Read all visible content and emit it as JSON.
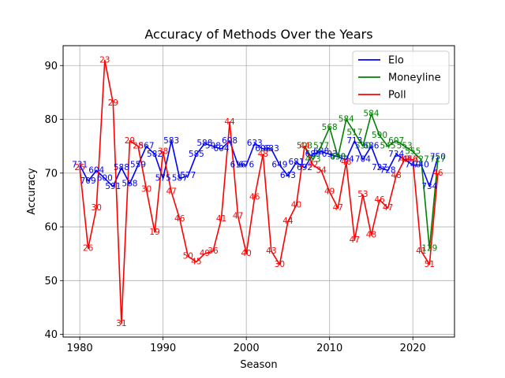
{
  "chart_data": {
    "type": "line",
    "title": "Accuracy of Methods Over the Years",
    "xlabel": "Season",
    "ylabel": "Accuracy",
    "xlim": [
      1978,
      2025
    ],
    "ylim": [
      39.5,
      93.7
    ],
    "xticks": [
      1980,
      1990,
      2000,
      2010,
      2020
    ],
    "yticks": [
      40,
      50,
      60,
      70,
      80,
      90
    ],
    "grid": true,
    "legend_position": "top-right",
    "series": [
      {
        "name": "Elo",
        "color": "#0000ff",
        "x": [
          1980,
          1981,
          1982,
          1983,
          1984,
          1985,
          1986,
          1987,
          1988,
          1989,
          1990,
          1991,
          1992,
          1993,
          1994,
          1995,
          1996,
          1997,
          1998,
          1999,
          2000,
          2001,
          2002,
          2003,
          2004,
          2005,
          2006,
          2007,
          2008,
          2009,
          2010,
          2011,
          2012,
          2013,
          2014,
          2015,
          2016,
          2017,
          2018,
          2019,
          2020,
          2021,
          2022,
          2023
        ],
        "y": [
          71.5,
          68.5,
          70.5,
          69.0,
          67.5,
          71.0,
          68.0,
          71.5,
          75.0,
          73.5,
          69.0,
          76.0,
          69.0,
          69.5,
          73.5,
          75.5,
          75.0,
          74.5,
          76.0,
          71.5,
          71.5,
          75.5,
          74.5,
          74.5,
          71.5,
          69.5,
          72.0,
          71.0,
          73.5,
          74.0,
          73.5,
          73.0,
          72.5,
          76.0,
          72.5,
          75.0,
          71.0,
          70.5,
          73.5,
          72.5,
          71.5,
          71.5,
          67.5,
          73.0
        ],
        "labels": [
          "731",
          "709",
          "604",
          "600",
          "591",
          "588",
          "568",
          "559",
          "567",
          "582",
          "575",
          "583",
          "587",
          "577",
          "585",
          "588",
          "598",
          "604",
          "608",
          "616",
          "676",
          "633",
          "608",
          "633",
          "649",
          "643",
          "681",
          "692",
          "689",
          "688",
          "693",
          "690",
          "704",
          "713",
          "704",
          "686",
          "727",
          "728",
          "734",
          "745",
          "740",
          "740",
          "734",
          "750"
        ]
      },
      {
        "name": "Moneyline",
        "color": "#008000",
        "x": [
          2007,
          2008,
          2009,
          2010,
          2011,
          2012,
          2013,
          2014,
          2015,
          2016,
          2017,
          2018,
          2019,
          2020,
          2021,
          2022,
          2023
        ],
        "y": [
          75.0,
          72.5,
          75.0,
          78.5,
          73.0,
          80.0,
          77.5,
          75.0,
          81.0,
          77.0,
          75.0,
          76.0,
          75.0,
          74.0,
          72.5,
          56.0,
          72.5
        ],
        "labels": [
          "503",
          "473",
          "517",
          "568",
          "498",
          "584",
          "517",
          "550",
          "584",
          "590",
          "545",
          "607",
          "553",
          "555",
          "727",
          "129",
          "727"
        ]
      },
      {
        "name": "Poll",
        "color": "#ff0000",
        "x": [
          1980,
          1981,
          1982,
          1983,
          1984,
          1985,
          1986,
          1987,
          1988,
          1989,
          1990,
          1991,
          1992,
          1993,
          1994,
          1995,
          1996,
          1997,
          1998,
          1999,
          2000,
          2001,
          2002,
          2003,
          2004,
          2005,
          2006,
          2007,
          2008,
          2009,
          2010,
          2011,
          2012,
          2013,
          2014,
          2015,
          2016,
          2017,
          2018,
          2019,
          2020,
          2021,
          2022,
          2023
        ],
        "y": [
          71.0,
          56.0,
          63.5,
          91.0,
          83.0,
          42.0,
          76.0,
          75.0,
          67.0,
          59.0,
          74.0,
          66.5,
          61.5,
          54.5,
          53.5,
          55.0,
          55.5,
          61.5,
          79.5,
          62.0,
          55.0,
          65.5,
          73.5,
          55.5,
          53.0,
          61.0,
          64.0,
          75.0,
          71.5,
          70.5,
          66.5,
          63.5,
          72.0,
          57.5,
          66.0,
          58.5,
          65.0,
          63.5,
          69.5,
          72.5,
          72.5,
          55.5,
          53.0,
          70.0
        ],
        "labels": [
          "25",
          "26",
          "30",
          "23",
          "29",
          "31",
          "29",
          "28",
          "30",
          "19",
          "38",
          "47",
          "46",
          "50",
          "45",
          "49",
          "36",
          "41",
          "44",
          "47",
          "40",
          "46",
          "48",
          "43",
          "30",
          "44",
          "40",
          "44",
          "42",
          "34",
          "49",
          "47",
          "46",
          "47",
          "53",
          "48",
          "46",
          "47",
          "48",
          "48",
          "46",
          "41",
          "51",
          "46"
        ]
      }
    ]
  }
}
